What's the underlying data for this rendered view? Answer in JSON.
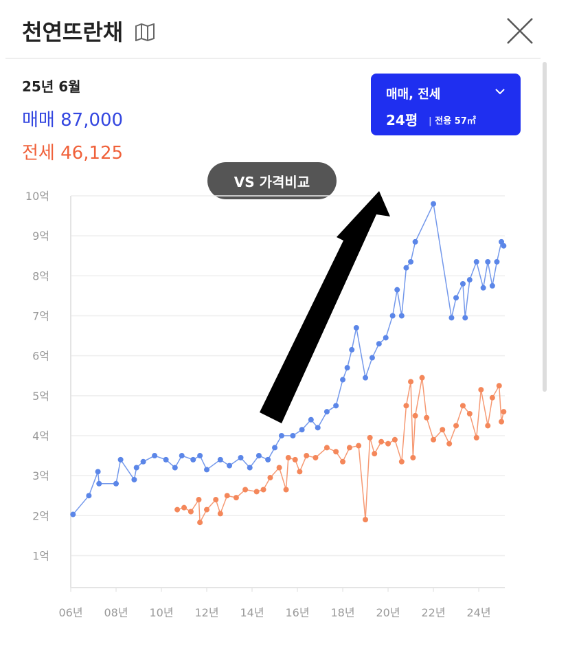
{
  "header": {
    "title": "천연뜨란채"
  },
  "summary": {
    "date": "25년 6월",
    "sale": {
      "label": "매매",
      "value": "87,000"
    },
    "jeonse": {
      "label": "전세",
      "value": "46,125"
    }
  },
  "selector": {
    "deal": "매매, 전세",
    "size": "24평",
    "area": "전용 57㎡"
  },
  "compare_button": "VS 가격비교",
  "chart_data": {
    "type": "line",
    "xlim": [
      2006,
      2025.15
    ],
    "ylim": [
      0.2,
      10
    ],
    "xticks": [
      {
        "value": 2006,
        "label": "06년"
      },
      {
        "value": 2008,
        "label": "08년"
      },
      {
        "value": 2010,
        "label": "10년"
      },
      {
        "value": 2012,
        "label": "12년"
      },
      {
        "value": 2014,
        "label": "14년"
      },
      {
        "value": 2016,
        "label": "16년"
      },
      {
        "value": 2018,
        "label": "18년"
      },
      {
        "value": 2020,
        "label": "20년"
      },
      {
        "value": 2022,
        "label": "22년"
      },
      {
        "value": 2024,
        "label": "24년"
      }
    ],
    "yticks": [
      {
        "value": 1,
        "label": "1억"
      },
      {
        "value": 2,
        "label": "2억"
      },
      {
        "value": 3,
        "label": "3억"
      },
      {
        "value": 4,
        "label": "4억"
      },
      {
        "value": 5,
        "label": "5억"
      },
      {
        "value": 6,
        "label": "6억"
      },
      {
        "value": 7,
        "label": "7억"
      },
      {
        "value": 8,
        "label": "8억"
      },
      {
        "value": 9,
        "label": "9억"
      },
      {
        "value": 10,
        "label": "10억"
      }
    ],
    "grid": true,
    "series": [
      {
        "name": "매매",
        "color": "#5b86e8",
        "x": [
          2006.1,
          2006.8,
          2007.2,
          2007.25,
          2008.0,
          2008.2,
          2008.8,
          2008.9,
          2009.2,
          2009.7,
          2010.2,
          2010.6,
          2010.9,
          2011.4,
          2011.7,
          2012.0,
          2012.6,
          2013.0,
          2013.5,
          2013.9,
          2014.3,
          2014.7,
          2015.0,
          2015.3,
          2015.8,
          2016.2,
          2016.6,
          2016.9,
          2017.3,
          2017.7,
          2018.0,
          2018.2,
          2018.4,
          2018.6,
          2019.0,
          2019.3,
          2019.6,
          2019.9,
          2020.2,
          2020.4,
          2020.6,
          2020.8,
          2021.0,
          2021.2,
          2022.0,
          2022.8,
          2023.0,
          2023.3,
          2023.4,
          2023.6,
          2023.9,
          2024.2,
          2024.4,
          2024.6,
          2024.8,
          2025.0,
          2025.1
        ],
        "values": [
          2.03,
          2.5,
          3.1,
          2.8,
          2.8,
          3.4,
          2.9,
          3.2,
          3.35,
          3.5,
          3.4,
          3.2,
          3.5,
          3.4,
          3.5,
          3.15,
          3.4,
          3.25,
          3.45,
          3.2,
          3.5,
          3.4,
          3.7,
          4.0,
          4.0,
          4.15,
          4.4,
          4.2,
          4.6,
          4.75,
          5.4,
          5.7,
          6.15,
          6.7,
          5.45,
          5.95,
          6.3,
          6.45,
          7.0,
          7.65,
          7.0,
          8.2,
          8.35,
          8.85,
          9.8,
          6.95,
          7.45,
          7.8,
          6.95,
          7.9,
          8.35,
          7.7,
          8.35,
          7.75,
          8.35,
          8.85,
          8.75
        ]
      },
      {
        "name": "전세",
        "color": "#f4875a",
        "x": [
          2010.7,
          2011.0,
          2011.3,
          2011.65,
          2011.7,
          2012.0,
          2012.4,
          2012.6,
          2012.9,
          2013.3,
          2013.7,
          2014.2,
          2014.5,
          2014.8,
          2015.2,
          2015.5,
          2015.6,
          2015.9,
          2016.1,
          2016.4,
          2016.8,
          2017.3,
          2017.7,
          2018.0,
          2018.3,
          2018.7,
          2019.0,
          2019.2,
          2019.4,
          2019.7,
          2020.0,
          2020.3,
          2020.6,
          2020.8,
          2021.0,
          2021.1,
          2021.2,
          2021.5,
          2021.7,
          2022.0,
          2022.4,
          2022.7,
          2023.0,
          2023.3,
          2023.6,
          2023.9,
          2024.1,
          2024.4,
          2024.6,
          2024.9,
          2025.0,
          2025.1
        ],
        "values": [
          2.15,
          2.2,
          2.1,
          2.4,
          1.83,
          2.15,
          2.4,
          2.05,
          2.5,
          2.45,
          2.65,
          2.6,
          2.65,
          2.95,
          3.2,
          2.65,
          3.45,
          3.4,
          3.1,
          3.5,
          3.45,
          3.7,
          3.6,
          3.35,
          3.7,
          3.75,
          1.9,
          3.95,
          3.55,
          3.85,
          3.8,
          3.9,
          3.35,
          4.75,
          5.35,
          3.45,
          4.5,
          5.45,
          4.45,
          3.9,
          4.15,
          3.8,
          4.25,
          4.75,
          4.55,
          3.95,
          5.15,
          4.25,
          4.95,
          5.25,
          4.35,
          4.6
        ]
      }
    ]
  }
}
